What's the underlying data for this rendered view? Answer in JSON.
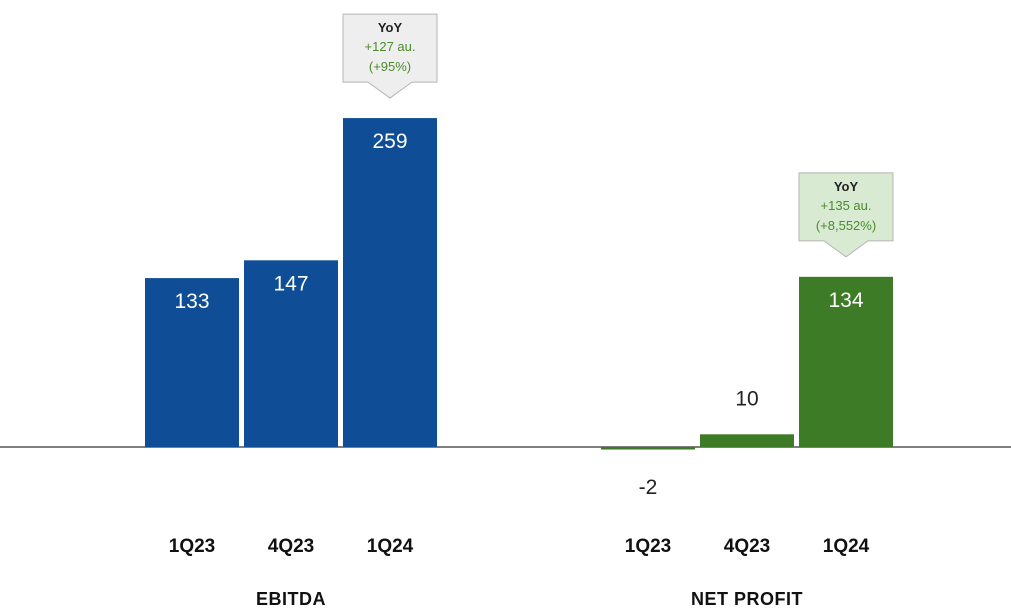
{
  "colors": {
    "ebitda_bar": "#0f4e96",
    "net_profit_bar": "#3e7b27",
    "callout_ebitda_fill": "#eeeeee",
    "callout_np_fill": "#d9ead3",
    "callout_text": "#4a8b2c",
    "baseline": "#555555"
  },
  "chart_data": [
    {
      "type": "bar",
      "group_label": "EBITDA",
      "categories": [
        "1Q23",
        "4Q23",
        "1Q24"
      ],
      "values": [
        133,
        147,
        259
      ],
      "value_labels": [
        "133",
        "147",
        "259"
      ],
      "callout": {
        "title": "YoY",
        "line1": "+127 au.",
        "line2": "(+95%)"
      }
    },
    {
      "type": "bar",
      "group_label": "NET PROFIT",
      "categories": [
        "1Q23",
        "4Q23",
        "1Q24"
      ],
      "values": [
        -2,
        10,
        134
      ],
      "value_labels": [
        "-2",
        "10",
        "134"
      ],
      "callout": {
        "title": "YoY",
        "line1": "+135 au.",
        "line2": "(+8,552%)"
      }
    }
  ]
}
